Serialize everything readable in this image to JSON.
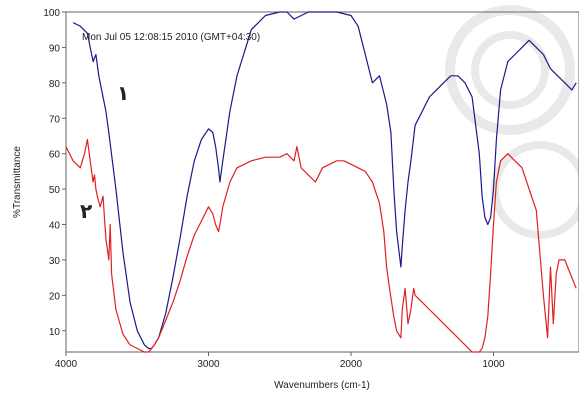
{
  "chart_data": {
    "type": "line",
    "title": "",
    "annotation": "Mon Jul 05 12:08:15 2010 (GMT+04:30)",
    "xlabel": "Wavenumbers (cm-1)",
    "ylabel": "%Transmittance",
    "xlim": [
      4000,
      400
    ],
    "ylim": [
      4,
      100
    ],
    "xticks": [
      4000,
      3000,
      2000,
      1000
    ],
    "yticks": [
      10,
      20,
      30,
      40,
      50,
      60,
      70,
      80,
      90,
      100
    ],
    "grid": false,
    "curve_labels": [
      "١",
      "٢"
    ],
    "series": [
      {
        "color": "#1a1a8c",
        "x": [
          3950,
          3900,
          3850,
          3830,
          3810,
          3790,
          3770,
          3750,
          3720,
          3700,
          3650,
          3600,
          3550,
          3500,
          3450,
          3420,
          3400,
          3380,
          3350,
          3300,
          3250,
          3200,
          3150,
          3100,
          3050,
          3000,
          2970,
          2950,
          2930,
          2920,
          2900,
          2850,
          2800,
          2700,
          2600,
          2500,
          2450,
          2400,
          2300,
          2200,
          2100,
          2000,
          1950,
          1900,
          1850,
          1800,
          1750,
          1720,
          1700,
          1680,
          1650,
          1640,
          1620,
          1600,
          1580,
          1550,
          1500,
          1450,
          1400,
          1350,
          1300,
          1250,
          1200,
          1150,
          1100,
          1080,
          1060,
          1040,
          1020,
          1000,
          980,
          950,
          900,
          850,
          800,
          750,
          700,
          650,
          600,
          550,
          500,
          450,
          420
        ],
        "y": [
          97,
          96,
          94,
          90,
          86,
          88,
          82,
          78,
          72,
          66,
          50,
          32,
          18,
          10,
          6,
          5,
          5,
          6,
          8,
          15,
          25,
          36,
          48,
          58,
          64,
          67,
          66,
          62,
          56,
          52,
          58,
          72,
          82,
          95,
          99,
          100,
          100,
          98,
          100,
          100,
          100,
          99,
          96,
          88,
          80,
          82,
          74,
          66,
          50,
          38,
          28,
          34,
          44,
          52,
          58,
          68,
          72,
          76,
          78,
          80,
          82,
          82,
          80,
          76,
          60,
          48,
          42,
          40,
          42,
          50,
          64,
          78,
          86,
          88,
          90,
          92,
          90,
          88,
          84,
          82,
          80,
          78,
          80
        ]
      },
      {
        "color": "#e02020",
        "x": [
          4000,
          3950,
          3900,
          3870,
          3850,
          3830,
          3810,
          3800,
          3790,
          3780,
          3760,
          3740,
          3720,
          3700,
          3690,
          3680,
          3650,
          3600,
          3550,
          3500,
          3450,
          3420,
          3400,
          3380,
          3350,
          3300,
          3250,
          3200,
          3150,
          3100,
          3050,
          3000,
          2970,
          2950,
          2930,
          2920,
          2900,
          2850,
          2800,
          2700,
          2600,
          2500,
          2450,
          2400,
          2380,
          2350,
          2300,
          2250,
          2200,
          2150,
          2100,
          2050,
          2000,
          1950,
          1900,
          1850,
          1800,
          1770,
          1750,
          1730,
          1700,
          1680,
          1650,
          1640,
          1620,
          1600,
          1580,
          1560,
          1550,
          1500,
          1450,
          1400,
          1350,
          1300,
          1250,
          1200,
          1150,
          1100,
          1080,
          1060,
          1040,
          1020,
          1000,
          980,
          950,
          900,
          850,
          800,
          750,
          700,
          650,
          620,
          600,
          580,
          560,
          540,
          520,
          500,
          480,
          460,
          440,
          420
        ],
        "y": [
          62,
          58,
          56,
          60,
          64,
          58,
          52,
          54,
          50,
          48,
          45,
          48,
          36,
          30,
          40,
          26,
          16,
          9,
          6,
          5,
          4,
          4,
          5,
          6,
          8,
          13,
          18,
          24,
          31,
          37,
          41,
          45,
          43,
          40,
          38,
          40,
          45,
          52,
          56,
          58,
          59,
          59,
          60,
          58,
          62,
          56,
          54,
          52,
          56,
          57,
          58,
          58,
          57,
          56,
          55,
          52,
          46,
          38,
          28,
          22,
          14,
          10,
          8,
          16,
          22,
          12,
          16,
          22,
          20,
          18,
          16,
          14,
          12,
          10,
          8,
          6,
          4,
          4,
          5,
          8,
          14,
          26,
          40,
          52,
          58,
          60,
          58,
          56,
          50,
          44,
          20,
          8,
          28,
          12,
          26,
          30,
          30,
          30,
          28,
          26,
          24,
          22
        ]
      }
    ]
  }
}
